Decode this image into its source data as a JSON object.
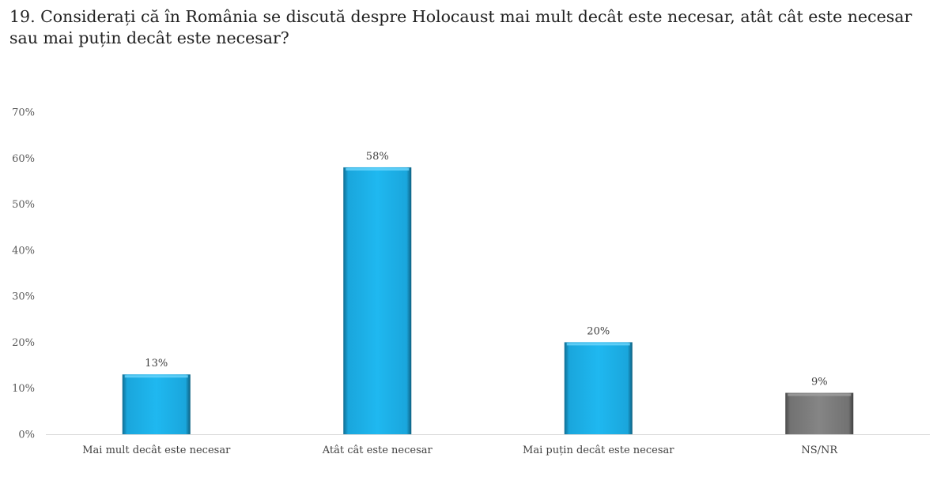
{
  "chart_data": {
    "type": "bar",
    "title": "19. Considerați că în România se discută despre Holocaust mai mult decât este necesar, atât cât este necesar sau mai puțin decât este necesar?",
    "categories": [
      "Mai mult decât este necesar",
      "Atât cât este necesar",
      "Mai puțin decât este necesar",
      "NS/NR"
    ],
    "values": [
      13,
      58,
      20,
      9
    ],
    "value_labels": [
      "13%",
      "58%",
      "20%",
      "9%"
    ],
    "bar_colors": [
      "#1db5ec",
      "#1db5ec",
      "#1db5ec",
      "#7f7f7f"
    ],
    "ylim": [
      0,
      70
    ],
    "yticks": [
      0,
      10,
      20,
      30,
      40,
      50,
      60,
      70
    ],
    "ytick_labels": [
      "0%",
      "10%",
      "20%",
      "30%",
      "40%",
      "50%",
      "60%",
      "70%"
    ],
    "xlabel": "",
    "ylabel": "",
    "grid": false,
    "legend": "none"
  }
}
